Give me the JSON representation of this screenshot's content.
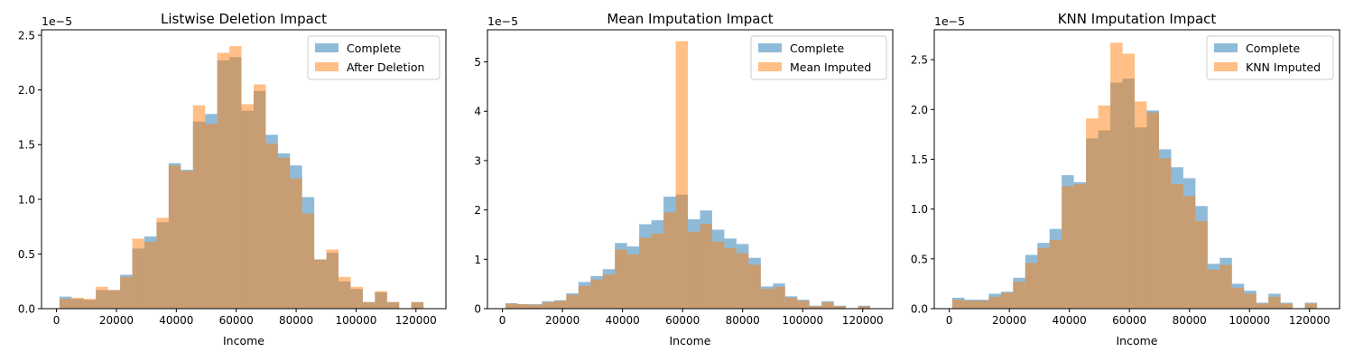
{
  "colors": {
    "complete": "#1f77b4",
    "imputed": "#ff7f0e",
    "overlap": "#c4996a"
  },
  "chart_data": [
    {
      "type": "bar",
      "title": "Listwise Deletion Impact",
      "xlabel": "Income",
      "ylabel": "",
      "y_scale_label": "1e−5",
      "xlim": [
        -5000,
        130000
      ],
      "ylim": [
        0,
        2.55
      ],
      "x_ticks": [
        0,
        20000,
        40000,
        60000,
        80000,
        100000,
        120000
      ],
      "y_ticks": [
        0.0,
        0.5,
        1.0,
        1.5,
        2.0,
        2.5
      ],
      "y_tick_labels": [
        "0.0",
        "0.5",
        "1.0",
        "1.5",
        "2.0",
        "2.5"
      ],
      "bin_start": 1000,
      "bin_width": 4050,
      "legend_position": "top-right",
      "series": [
        {
          "name": "Complete",
          "values": [
            0.11,
            0.09,
            0.08,
            0.17,
            0.17,
            0.31,
            0.55,
            0.66,
            0.79,
            1.33,
            1.27,
            1.71,
            1.78,
            2.27,
            2.3,
            1.81,
            1.99,
            1.59,
            1.42,
            1.31,
            1.02,
            0.45,
            0.51,
            0.25,
            0.18,
            0.06,
            0.15,
            0.06,
            0.0,
            0.06
          ]
        },
        {
          "name": "After Deletion",
          "values": [
            0.09,
            0.1,
            0.09,
            0.2,
            0.17,
            0.29,
            0.64,
            0.61,
            0.83,
            1.31,
            1.26,
            1.86,
            1.69,
            2.34,
            2.4,
            1.87,
            2.05,
            1.51,
            1.38,
            1.19,
            0.87,
            0.45,
            0.54,
            0.29,
            0.2,
            0.06,
            0.16,
            0.06,
            0.0,
            0.06
          ]
        }
      ]
    },
    {
      "type": "bar",
      "title": "Mean Imputation Impact",
      "xlabel": "Income",
      "ylabel": "",
      "y_scale_label": "1e−5",
      "xlim": [
        -5000,
        130000
      ],
      "ylim": [
        0,
        5.65
      ],
      "x_ticks": [
        0,
        20000,
        40000,
        60000,
        80000,
        100000,
        120000
      ],
      "y_ticks": [
        0,
        1,
        2,
        3,
        4,
        5
      ],
      "y_tick_labels": [
        "0",
        "1",
        "2",
        "3",
        "4",
        "5"
      ],
      "bin_start": 1000,
      "bin_width": 4050,
      "legend_position": "top-right",
      "series": [
        {
          "name": "Complete",
          "values": [
            0.11,
            0.09,
            0.09,
            0.15,
            0.17,
            0.31,
            0.54,
            0.66,
            0.8,
            1.33,
            1.26,
            1.71,
            1.79,
            2.27,
            2.31,
            1.81,
            1.99,
            1.6,
            1.42,
            1.31,
            1.03,
            0.45,
            0.51,
            0.25,
            0.18,
            0.06,
            0.15,
            0.06,
            0.0,
            0.06
          ]
        },
        {
          "name": "Mean Imputed",
          "values": [
            0.1,
            0.09,
            0.08,
            0.13,
            0.16,
            0.28,
            0.46,
            0.59,
            0.69,
            1.2,
            1.1,
            1.44,
            1.52,
            1.95,
            5.42,
            1.56,
            1.72,
            1.36,
            1.23,
            1.12,
            0.89,
            0.4,
            0.44,
            0.22,
            0.16,
            0.05,
            0.13,
            0.05,
            0.0,
            0.05
          ]
        }
      ]
    },
    {
      "type": "bar",
      "title": "KNN Imputation Impact",
      "xlabel": "Income",
      "ylabel": "",
      "y_scale_label": "1e−5",
      "xlim": [
        -5000,
        130000
      ],
      "ylim": [
        0,
        2.8
      ],
      "x_ticks": [
        0,
        20000,
        40000,
        60000,
        80000,
        100000,
        120000
      ],
      "y_ticks": [
        0.0,
        0.5,
        1.0,
        1.5,
        2.0,
        2.5
      ],
      "y_tick_labels": [
        "0.0",
        "0.5",
        "1.0",
        "1.5",
        "2.0",
        "2.5"
      ],
      "bin_start": 1000,
      "bin_width": 4050,
      "legend_position": "top-right",
      "series": [
        {
          "name": "Complete",
          "values": [
            0.11,
            0.09,
            0.09,
            0.15,
            0.17,
            0.31,
            0.54,
            0.66,
            0.8,
            1.34,
            1.27,
            1.71,
            1.79,
            2.27,
            2.31,
            1.82,
            1.99,
            1.6,
            1.42,
            1.31,
            1.03,
            0.45,
            0.51,
            0.25,
            0.18,
            0.06,
            0.15,
            0.06,
            0.0,
            0.06
          ]
        },
        {
          "name": "KNN Imputed",
          "values": [
            0.09,
            0.08,
            0.08,
            0.12,
            0.16,
            0.27,
            0.46,
            0.61,
            0.69,
            1.23,
            1.25,
            1.91,
            2.04,
            2.67,
            2.56,
            2.08,
            1.97,
            1.51,
            1.25,
            1.13,
            0.88,
            0.39,
            0.44,
            0.21,
            0.15,
            0.05,
            0.12,
            0.05,
            0.0,
            0.05
          ]
        }
      ]
    }
  ]
}
